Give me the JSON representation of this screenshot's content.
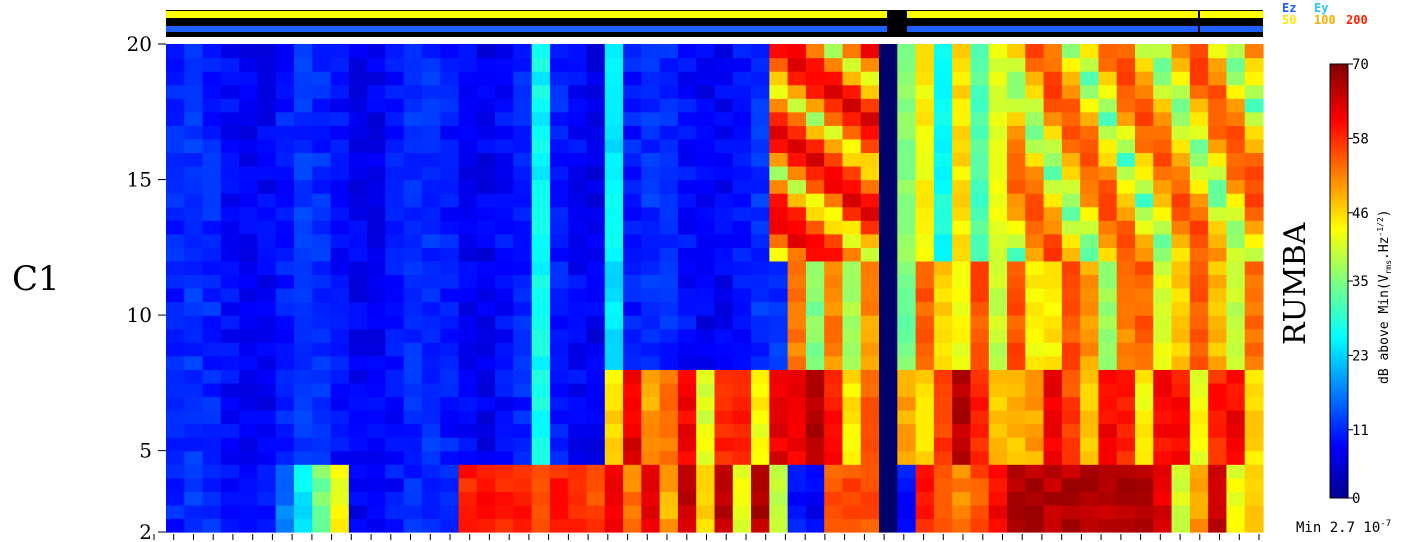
{
  "panel_label": "C1",
  "instrument_label": "RUMBA",
  "legend": {
    "components": [
      {
        "label": "Ez",
        "color": "#1e5fff"
      },
      {
        "label": "Ey",
        "color": "#27c7ff"
      }
    ],
    "levels": [
      {
        "label": "50",
        "color": "#ffe600"
      },
      {
        "label": "100",
        "color": "#ffae00"
      },
      {
        "label": "200",
        "color": "#ff2200"
      }
    ]
  },
  "colorbar": {
    "title": "dB above Min(Vrms.Hz-1/2)",
    "title_main": "dB above Min(V",
    "title_sub": "rms",
    "title_mid": ".Hz",
    "title_sup": "-1/2",
    "title_end": ")",
    "ticks": [
      "0",
      "11",
      "23",
      "35",
      "46",
      "58",
      "70"
    ],
    "range": [
      0,
      70
    ]
  },
  "min_label": {
    "prefix": "Min 2.7 10",
    "exponent": "-7"
  },
  "chart_data": {
    "type": "heatmap",
    "title": "",
    "xlabel": "",
    "ylabel": "",
    "yticks": [
      "2",
      "5",
      "10",
      "15",
      "20"
    ],
    "ylim": [
      2,
      20
    ],
    "colorscale": "jet",
    "value_range_dB": [
      0,
      70
    ],
    "x_tick_count": 56,
    "columns": 60,
    "status_bar": {
      "top_stripe": "yellow",
      "middle_stripe": "black",
      "lower_stripe": "blue",
      "gap_column": 39
    },
    "grid": false
  }
}
